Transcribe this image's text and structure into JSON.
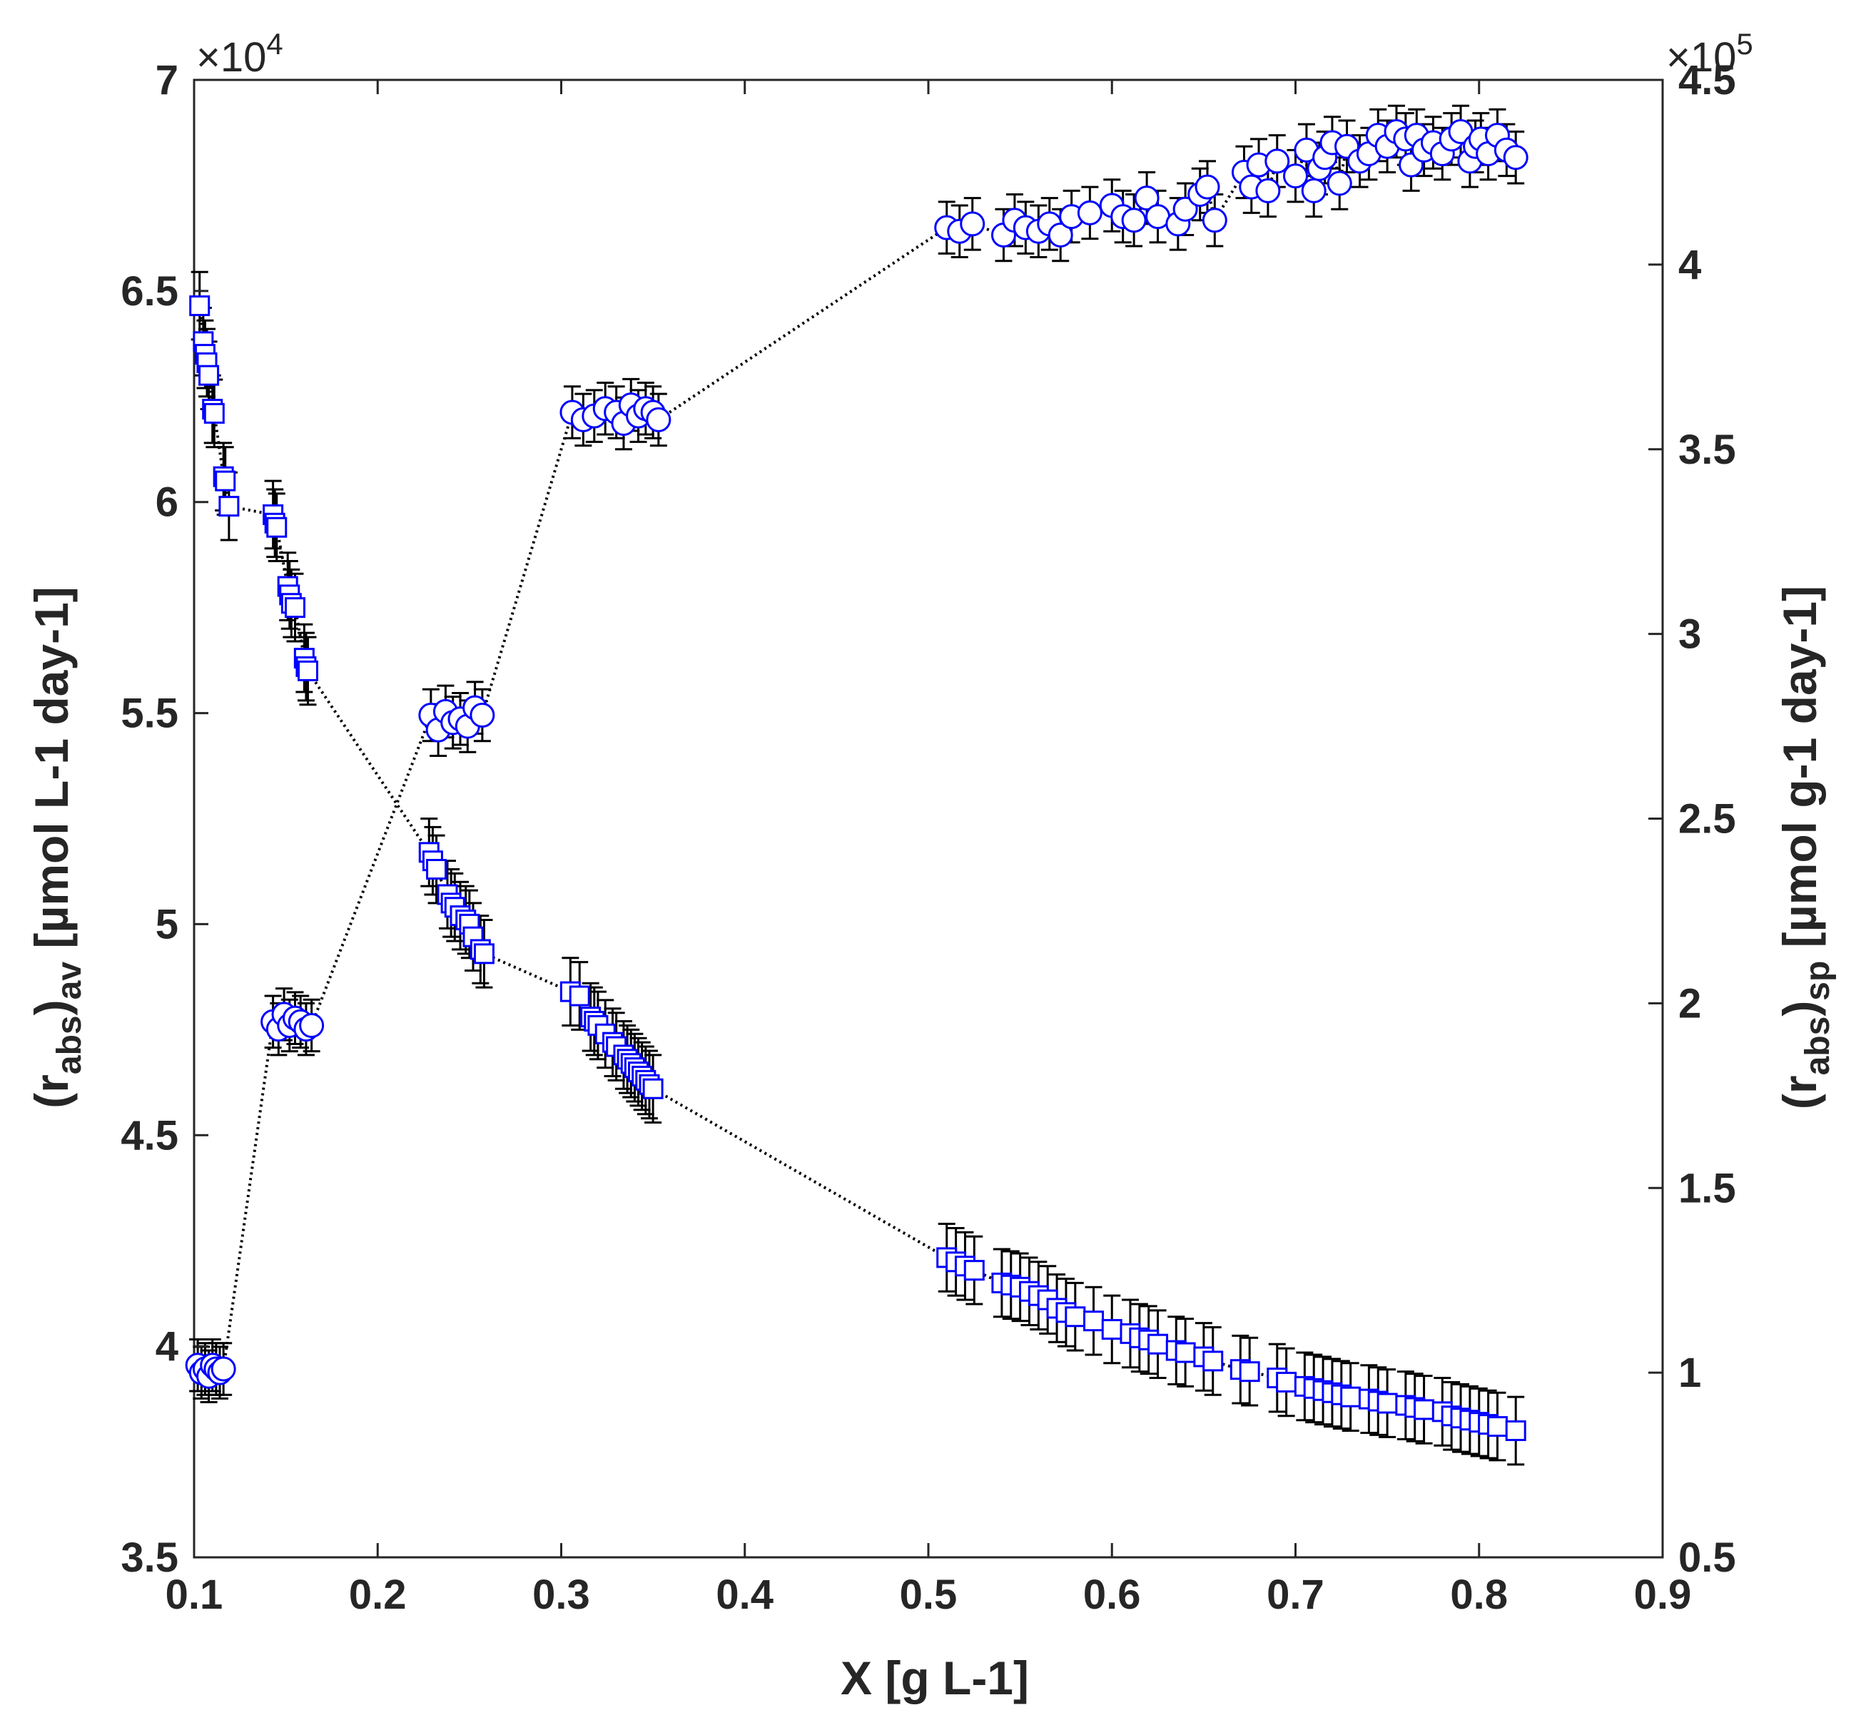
{
  "chart_data": {
    "type": "scatter",
    "title": "",
    "xlabel": "X [g L-1]",
    "ylabel_left": {
      "base": "(r",
      "sub1": "abs",
      "mid": ")",
      "sub2": "av",
      "rest": " [µmol L-1 day-1]"
    },
    "ylabel_right": {
      "base": "(r",
      "sub1": "abs",
      "mid": ")",
      "sub2": "sp",
      "rest": " [µmol g-1 day-1]"
    },
    "xlim": [
      0.1,
      0.9
    ],
    "ylim_left": [
      35000,
      70000
    ],
    "ylim_right": [
      50000,
      450000
    ],
    "xticks": [
      "0.1",
      "0.2",
      "0.3",
      "0.4",
      "0.5",
      "0.6",
      "0.7",
      "0.8",
      "0.9"
    ],
    "yticks_left": [
      "3.5",
      "4",
      "4.5",
      "5",
      "5.5",
      "6",
      "6.5",
      "7"
    ],
    "yticks_right": [
      "0.5",
      "1",
      "1.5",
      "2",
      "2.5",
      "3",
      "3.5",
      "4",
      "4.5"
    ],
    "exponent_left": {
      "text": "×10",
      "power": "4"
    },
    "exponent_right": {
      "text": "×10",
      "power": "5"
    },
    "grid": false,
    "colors": {
      "marker": "#0000ff",
      "errorbar": "#000000",
      "line": "#000000",
      "axis": "#262626"
    },
    "series": [
      {
        "axis": "left",
        "marker": "square",
        "x": [
          0.103,
          0.105,
          0.106,
          0.107,
          0.108,
          0.11,
          0.111,
          0.116,
          0.117,
          0.119,
          0.143,
          0.144,
          0.145,
          0.151,
          0.152,
          0.153,
          0.155,
          0.16,
          0.161,
          0.162,
          0.228,
          0.23,
          0.232,
          0.238,
          0.24,
          0.242,
          0.245,
          0.248,
          0.25,
          0.252,
          0.256,
          0.258,
          0.305,
          0.31,
          0.316,
          0.318,
          0.32,
          0.324,
          0.328,
          0.33,
          0.334,
          0.336,
          0.338,
          0.34,
          0.342,
          0.344,
          0.346,
          0.348,
          0.35,
          0.51,
          0.515,
          0.52,
          0.525,
          0.54,
          0.545,
          0.55,
          0.555,
          0.56,
          0.565,
          0.57,
          0.575,
          0.58,
          0.59,
          0.6,
          0.61,
          0.615,
          0.62,
          0.625,
          0.635,
          0.64,
          0.65,
          0.655,
          0.67,
          0.675,
          0.69,
          0.695,
          0.705,
          0.71,
          0.715,
          0.72,
          0.725,
          0.73,
          0.74,
          0.745,
          0.75,
          0.76,
          0.765,
          0.77,
          0.78,
          0.785,
          0.79,
          0.795,
          0.8,
          0.805,
          0.81,
          0.82
        ],
        "y": [
          64650,
          63800,
          63500,
          63300,
          63000,
          62200,
          62100,
          60600,
          60500,
          59900,
          59700,
          59500,
          59400,
          58000,
          57800,
          57600,
          57500,
          56300,
          56100,
          56000,
          51700,
          51500,
          51300,
          50700,
          50500,
          50400,
          50200,
          50100,
          50000,
          49700,
          49400,
          49300,
          48400,
          48300,
          47800,
          47700,
          47600,
          47400,
          47200,
          47100,
          46900,
          46800,
          46700,
          46600,
          46500,
          46400,
          46300,
          46200,
          46100,
          42100,
          42000,
          41900,
          41800,
          41500,
          41450,
          41400,
          41300,
          41200,
          41100,
          40900,
          40800,
          40700,
          40600,
          40400,
          40300,
          40200,
          40150,
          40050,
          39900,
          39850,
          39750,
          39650,
          39450,
          39400,
          39250,
          39150,
          39050,
          39000,
          38950,
          38900,
          38850,
          38800,
          38750,
          38700,
          38650,
          38600,
          38550,
          38500,
          38450,
          38350,
          38300,
          38250,
          38200,
          38150,
          38100,
          38000
        ]
      },
      {
        "axis": "right",
        "marker": "circle",
        "x": [
          0.102,
          0.104,
          0.106,
          0.108,
          0.11,
          0.112,
          0.114,
          0.116,
          0.143,
          0.146,
          0.149,
          0.152,
          0.155,
          0.158,
          0.161,
          0.164,
          0.229,
          0.233,
          0.237,
          0.241,
          0.245,
          0.249,
          0.253,
          0.257,
          0.306,
          0.312,
          0.318,
          0.324,
          0.33,
          0.334,
          0.338,
          0.342,
          0.346,
          0.35,
          0.353,
          0.51,
          0.517,
          0.524,
          0.541,
          0.547,
          0.553,
          0.56,
          0.566,
          0.572,
          0.578,
          0.588,
          0.6,
          0.606,
          0.612,
          0.619,
          0.625,
          0.636,
          0.64,
          0.648,
          0.652,
          0.656,
          0.672,
          0.676,
          0.68,
          0.685,
          0.69,
          0.7,
          0.706,
          0.71,
          0.713,
          0.716,
          0.72,
          0.724,
          0.728,
          0.735,
          0.74,
          0.745,
          0.75,
          0.755,
          0.76,
          0.763,
          0.766,
          0.77,
          0.775,
          0.78,
          0.785,
          0.79,
          0.795,
          0.798,
          0.801,
          0.805,
          0.81,
          0.815,
          0.82
        ],
        "y": [
          102000,
          100000,
          101000,
          99000,
          102000,
          101000,
          100000,
          101000,
          195000,
          193000,
          197000,
          194000,
          196000,
          195000,
          193000,
          194000,
          278000,
          274000,
          279000,
          276000,
          277000,
          275000,
          280000,
          278000,
          360000,
          358000,
          359000,
          361000,
          360000,
          357000,
          362000,
          359000,
          361000,
          360000,
          358000,
          410000,
          409000,
          411000,
          408000,
          412000,
          410000,
          409000,
          411000,
          408000,
          413000,
          414000,
          416000,
          413000,
          412000,
          418000,
          413000,
          411000,
          415000,
          419000,
          421000,
          412000,
          425000,
          421000,
          427000,
          420000,
          428000,
          424000,
          431000,
          420000,
          426000,
          429000,
          433000,
          422000,
          432000,
          428000,
          430000,
          435000,
          432000,
          436000,
          434000,
          427000,
          435000,
          431000,
          433000,
          430000,
          434000,
          436000,
          428000,
          432000,
          434000,
          430000,
          435000,
          431000,
          429000
        ]
      }
    ]
  }
}
